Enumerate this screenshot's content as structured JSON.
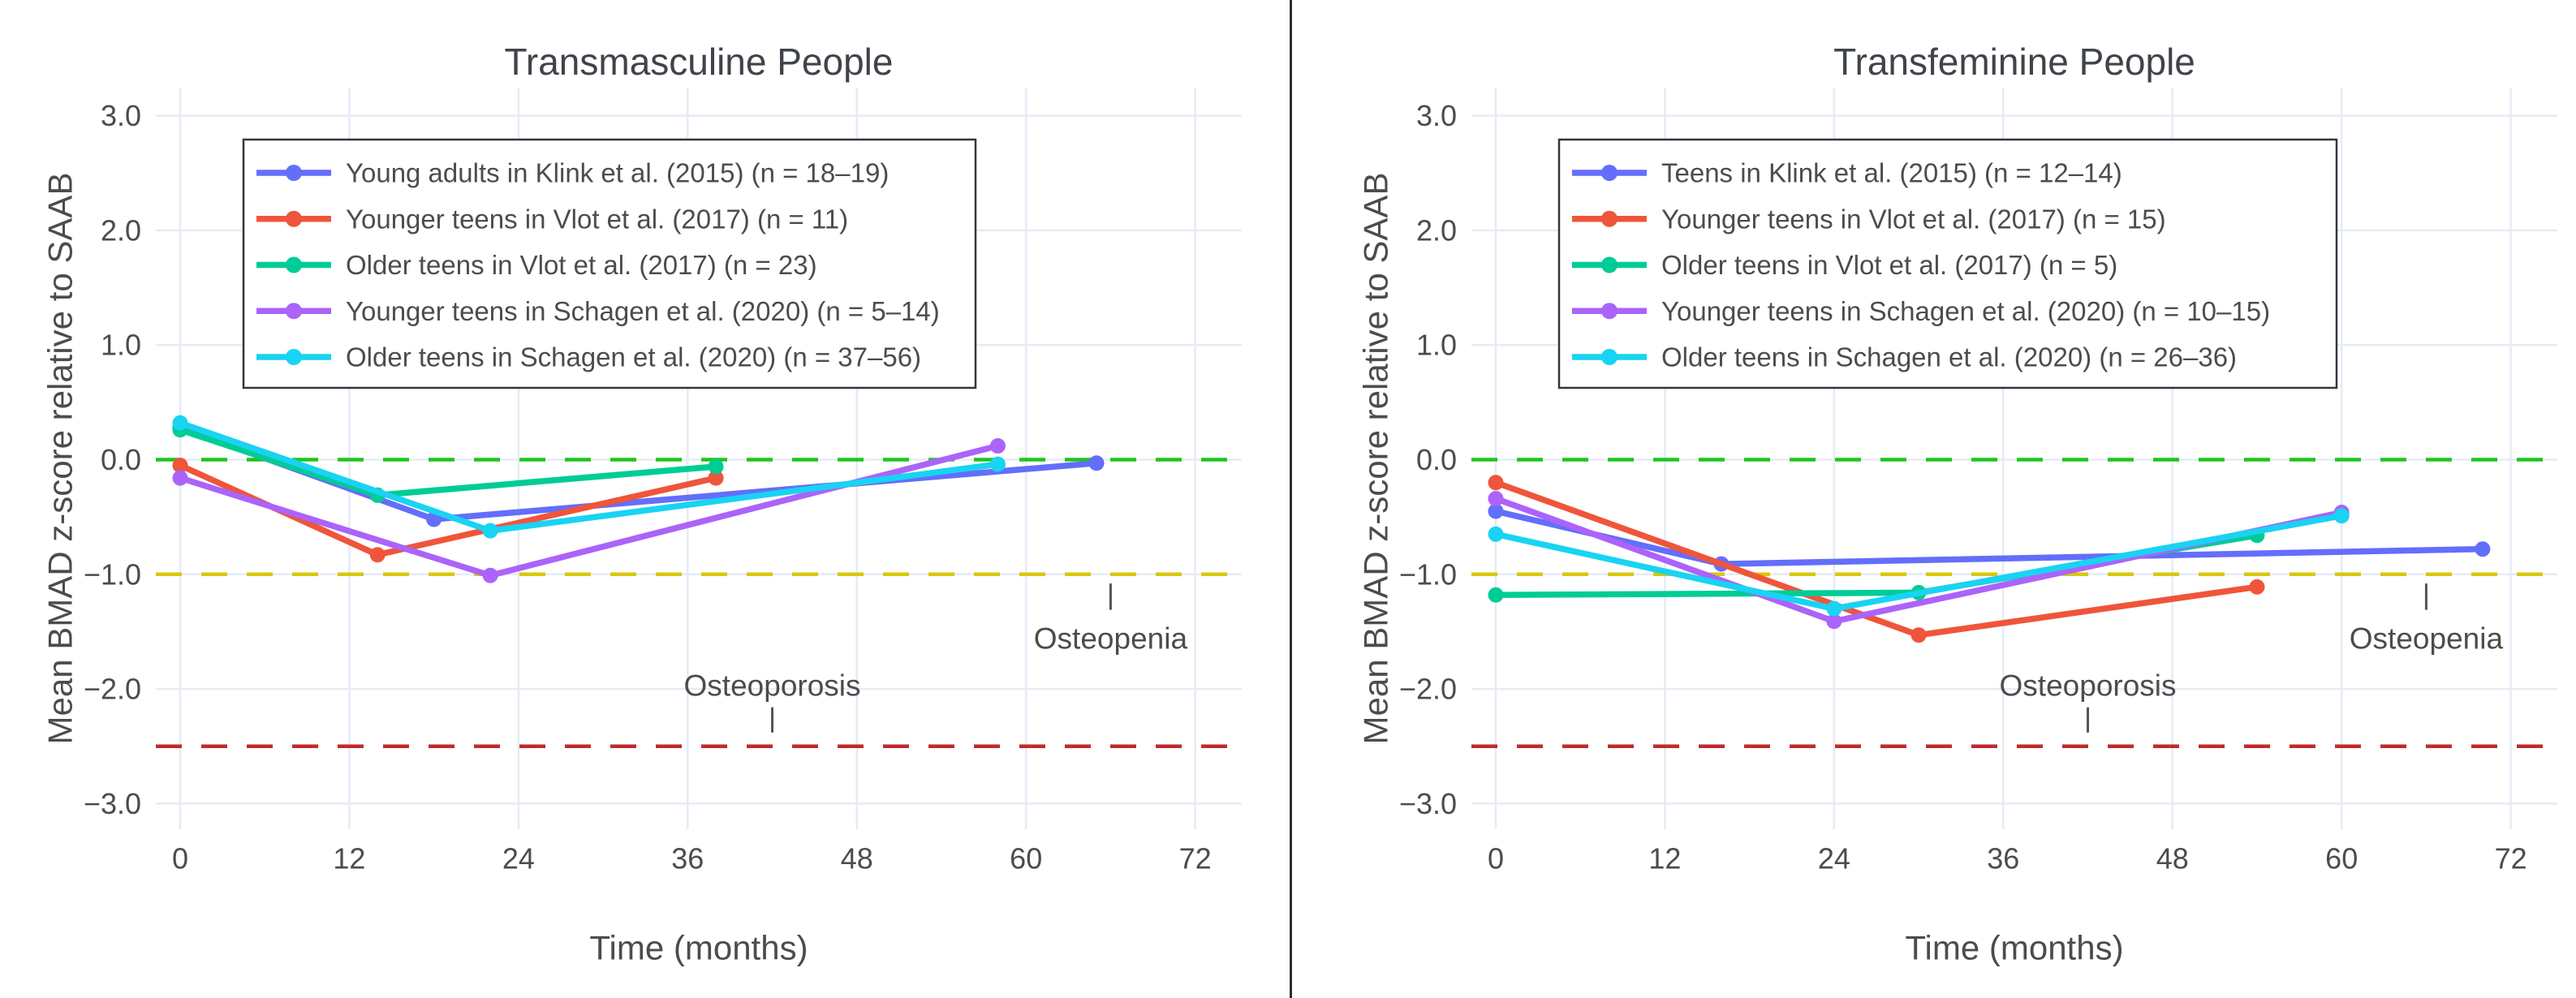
{
  "chart_data": [
    {
      "type": "line",
      "title": "Transmasculine People",
      "xlabel": "Time (months)",
      "ylabel": "Mean BMAD z-score relative to SAAB",
      "x_ticks": [
        0,
        12,
        24,
        36,
        48,
        60,
        72
      ],
      "x_tick_labels": [
        "0",
        "12",
        "24",
        "36",
        "48",
        "60",
        "72"
      ],
      "y_ticks": [
        3,
        2,
        1,
        0,
        -1,
        -2,
        -3
      ],
      "y_tick_labels": [
        "3.0",
        "2.0",
        "1.0",
        "0.0",
        "−1.0",
        "−2.0",
        "−3.0"
      ],
      "xlim": [
        -1.8,
        75
      ],
      "ylim": [
        -3.2,
        3.2
      ],
      "grid": true,
      "legend_position": "upper-left",
      "reference_lines": [
        {
          "name": "normal",
          "y": 0,
          "color": "#1fc41f",
          "style": "dashed"
        },
        {
          "name": "osteopenia-threshold",
          "y": -1,
          "color": "#d9c70e",
          "style": "dashed"
        },
        {
          "name": "osteoporosis-threshold",
          "y": -2.5,
          "color": "#c12a2a",
          "style": "dashed"
        }
      ],
      "annotations": [
        {
          "text": "Osteopenia",
          "x": 66,
          "y": -1.56,
          "tick_x": 66,
          "tick_y1": -1.08,
          "tick_y2": -1.31
        },
        {
          "text": "Osteoporosis",
          "x": 42,
          "y": -1.97,
          "tick_x": 42,
          "tick_y1": -2.16,
          "tick_y2": -2.38
        }
      ],
      "series": [
        {
          "name": "Young adults in Klink et al. (2015) (n = 18–19)",
          "color": "#636EFA",
          "x": [
            0,
            18,
            65
          ],
          "y": [
            0.28,
            -0.52,
            -0.03
          ]
        },
        {
          "name": "Younger teens in Vlot et al. (2017) (n = 11)",
          "color": "#EF553B",
          "x": [
            0,
            14,
            38
          ],
          "y": [
            -0.05,
            -0.83,
            -0.16
          ]
        },
        {
          "name": "Older teens in Vlot et al. (2017) (n = 23)",
          "color": "#00CC96",
          "x": [
            0,
            14,
            38
          ],
          "y": [
            0.26,
            -0.31,
            -0.06
          ]
        },
        {
          "name": "Younger teens in Schagen et al. (2020) (n = 5–14)",
          "color": "#AB63FA",
          "x": [
            0,
            22,
            58
          ],
          "y": [
            -0.16,
            -1.01,
            0.12
          ]
        },
        {
          "name": "Older teens in Schagen et al. (2020) (n = 37–56)",
          "color": "#19D3F3",
          "x": [
            0,
            22,
            58
          ],
          "y": [
            0.32,
            -0.62,
            -0.04
          ]
        }
      ]
    },
    {
      "type": "line",
      "title": "Transfeminine People",
      "xlabel": "Time (months)",
      "ylabel": "Mean BMAD z-score relative to SAAB",
      "x_ticks": [
        0,
        12,
        24,
        36,
        48,
        60,
        72
      ],
      "x_tick_labels": [
        "0",
        "12",
        "24",
        "36",
        "48",
        "60",
        "72"
      ],
      "y_ticks": [
        3,
        2,
        1,
        0,
        -1,
        -2,
        -3
      ],
      "y_tick_labels": [
        "3.0",
        "2.0",
        "1.0",
        "0.0",
        "−1.0",
        "−2.0",
        "−3.0"
      ],
      "xlim": [
        -1.8,
        75
      ],
      "ylim": [
        -3.2,
        3.2
      ],
      "grid": true,
      "legend_position": "upper-left",
      "reference_lines": [
        {
          "name": "normal",
          "y": 0,
          "color": "#1fc41f",
          "style": "dashed"
        },
        {
          "name": "osteopenia-threshold",
          "y": -1,
          "color": "#d9c70e",
          "style": "dashed"
        },
        {
          "name": "osteoporosis-threshold",
          "y": -2.5,
          "color": "#c12a2a",
          "style": "dashed"
        }
      ],
      "annotations": [
        {
          "text": "Osteopenia",
          "x": 66,
          "y": -1.56,
          "tick_x": 66,
          "tick_y1": -1.08,
          "tick_y2": -1.31
        },
        {
          "text": "Osteoporosis",
          "x": 42,
          "y": -1.97,
          "tick_x": 42,
          "tick_y1": -2.16,
          "tick_y2": -2.38
        }
      ],
      "series": [
        {
          "name": "Teens in Klink et al. (2015) (n = 12–14)",
          "color": "#636EFA",
          "x": [
            0,
            16,
            70
          ],
          "y": [
            -0.45,
            -0.91,
            -0.78
          ]
        },
        {
          "name": "Younger teens in Vlot et al. (2017) (n = 15)",
          "color": "#EF553B",
          "x": [
            0,
            30,
            54
          ],
          "y": [
            -0.2,
            -1.53,
            -1.11
          ]
        },
        {
          "name": "Older teens in Vlot et al. (2017) (n = 5)",
          "color": "#00CC96",
          "x": [
            0,
            30,
            54
          ],
          "y": [
            -1.18,
            -1.16,
            -0.66
          ]
        },
        {
          "name": "Younger teens in Schagen et al. (2020) (n = 10–15)",
          "color": "#AB63FA",
          "x": [
            0,
            24,
            60
          ],
          "y": [
            -0.34,
            -1.41,
            -0.46
          ]
        },
        {
          "name": "Older teens in Schagen et al. (2020) (n = 26–36)",
          "color": "#19D3F3",
          "x": [
            0,
            24,
            60
          ],
          "y": [
            -0.65,
            -1.3,
            -0.49
          ]
        }
      ]
    }
  ],
  "style": {
    "grid_color": "#e6ebf6",
    "text_color": "#4c4c4c",
    "title_color": "#3f434a",
    "legend_border_color": "#33363d",
    "annotation_tick_color": "#555555",
    "divider_color": "#2d2d2d",
    "background": "#ffffff"
  }
}
